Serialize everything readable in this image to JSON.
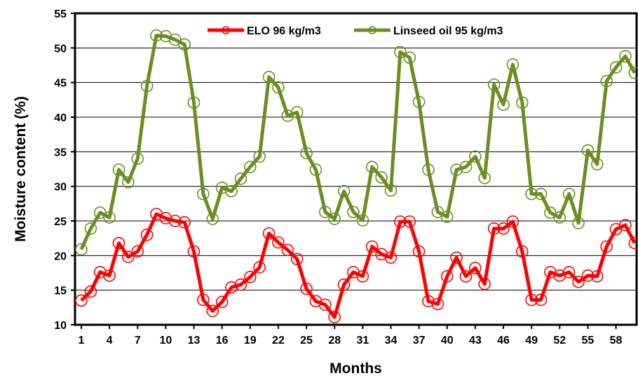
{
  "chart_data": {
    "type": "line",
    "xlabel": "Months",
    "ylabel": "Moisture content (%)",
    "ylim": [
      10,
      55
    ],
    "yticks": [
      10,
      15,
      20,
      25,
      30,
      35,
      40,
      45,
      50,
      55
    ],
    "xticks": [
      1,
      4,
      7,
      10,
      13,
      16,
      19,
      22,
      25,
      28,
      31,
      34,
      37,
      40,
      43,
      46,
      49,
      52,
      55,
      58
    ],
    "grid": "horizontal",
    "legend": "top",
    "x": [
      1,
      2,
      3,
      4,
      5,
      6,
      7,
      8,
      9,
      10,
      11,
      12,
      13,
      14,
      15,
      16,
      17,
      18,
      19,
      20,
      21,
      22,
      23,
      24,
      25,
      26,
      27,
      28,
      29,
      30,
      31,
      32,
      33,
      34,
      35,
      36,
      37,
      38,
      39,
      40,
      41,
      42,
      43,
      44,
      45,
      46,
      47,
      48,
      49,
      50,
      51,
      52,
      53,
      54,
      55,
      56,
      57,
      58,
      59,
      60
    ],
    "series": [
      {
        "name": "ELO 96 kg/m3",
        "color": "#ff0000",
        "values": [
          13.5,
          14.8,
          17.6,
          17.1,
          21.8,
          19.8,
          20.6,
          23.0,
          26.0,
          25.4,
          25.0,
          24.8,
          20.6,
          13.6,
          12.0,
          13.3,
          15.4,
          15.8,
          16.9,
          18.3,
          23.2,
          21.9,
          20.8,
          19.5,
          15.2,
          13.4,
          12.9,
          11.1,
          15.8,
          17.6,
          17.0,
          21.3,
          20.2,
          19.7,
          24.9,
          24.9,
          20.6,
          13.4,
          13.0,
          17.0,
          19.7,
          17.0,
          18.2,
          15.9,
          23.9,
          23.9,
          24.9,
          20.6,
          13.6,
          13.6,
          17.6,
          17.1,
          17.6,
          16.2,
          17.1,
          17.0,
          21.3,
          23.8,
          24.4,
          21.8
        ]
      },
      {
        "name": "Linseed oil 95 kg/m3",
        "color": "#6b8e23",
        "values": [
          20.9,
          23.9,
          26.2,
          25.5,
          32.4,
          30.6,
          34.0,
          44.5,
          51.8,
          51.7,
          51.2,
          50.5,
          42.1,
          28.9,
          25.3,
          29.8,
          29.3,
          31.1,
          32.8,
          34.3,
          45.8,
          44.3,
          40.2,
          40.7,
          34.8,
          32.4,
          26.3,
          25.3,
          29.3,
          26.3,
          25.1,
          32.8,
          31.3,
          29.4,
          49.4,
          48.6,
          42.2,
          32.4,
          26.3,
          25.6,
          32.4,
          32.8,
          34.3,
          31.2,
          44.7,
          41.8,
          47.6,
          42.1,
          28.9,
          28.9,
          26.2,
          25.5,
          28.9,
          24.7,
          35.2,
          33.2,
          45.2,
          47.2,
          48.8,
          46.4
        ]
      }
    ]
  }
}
